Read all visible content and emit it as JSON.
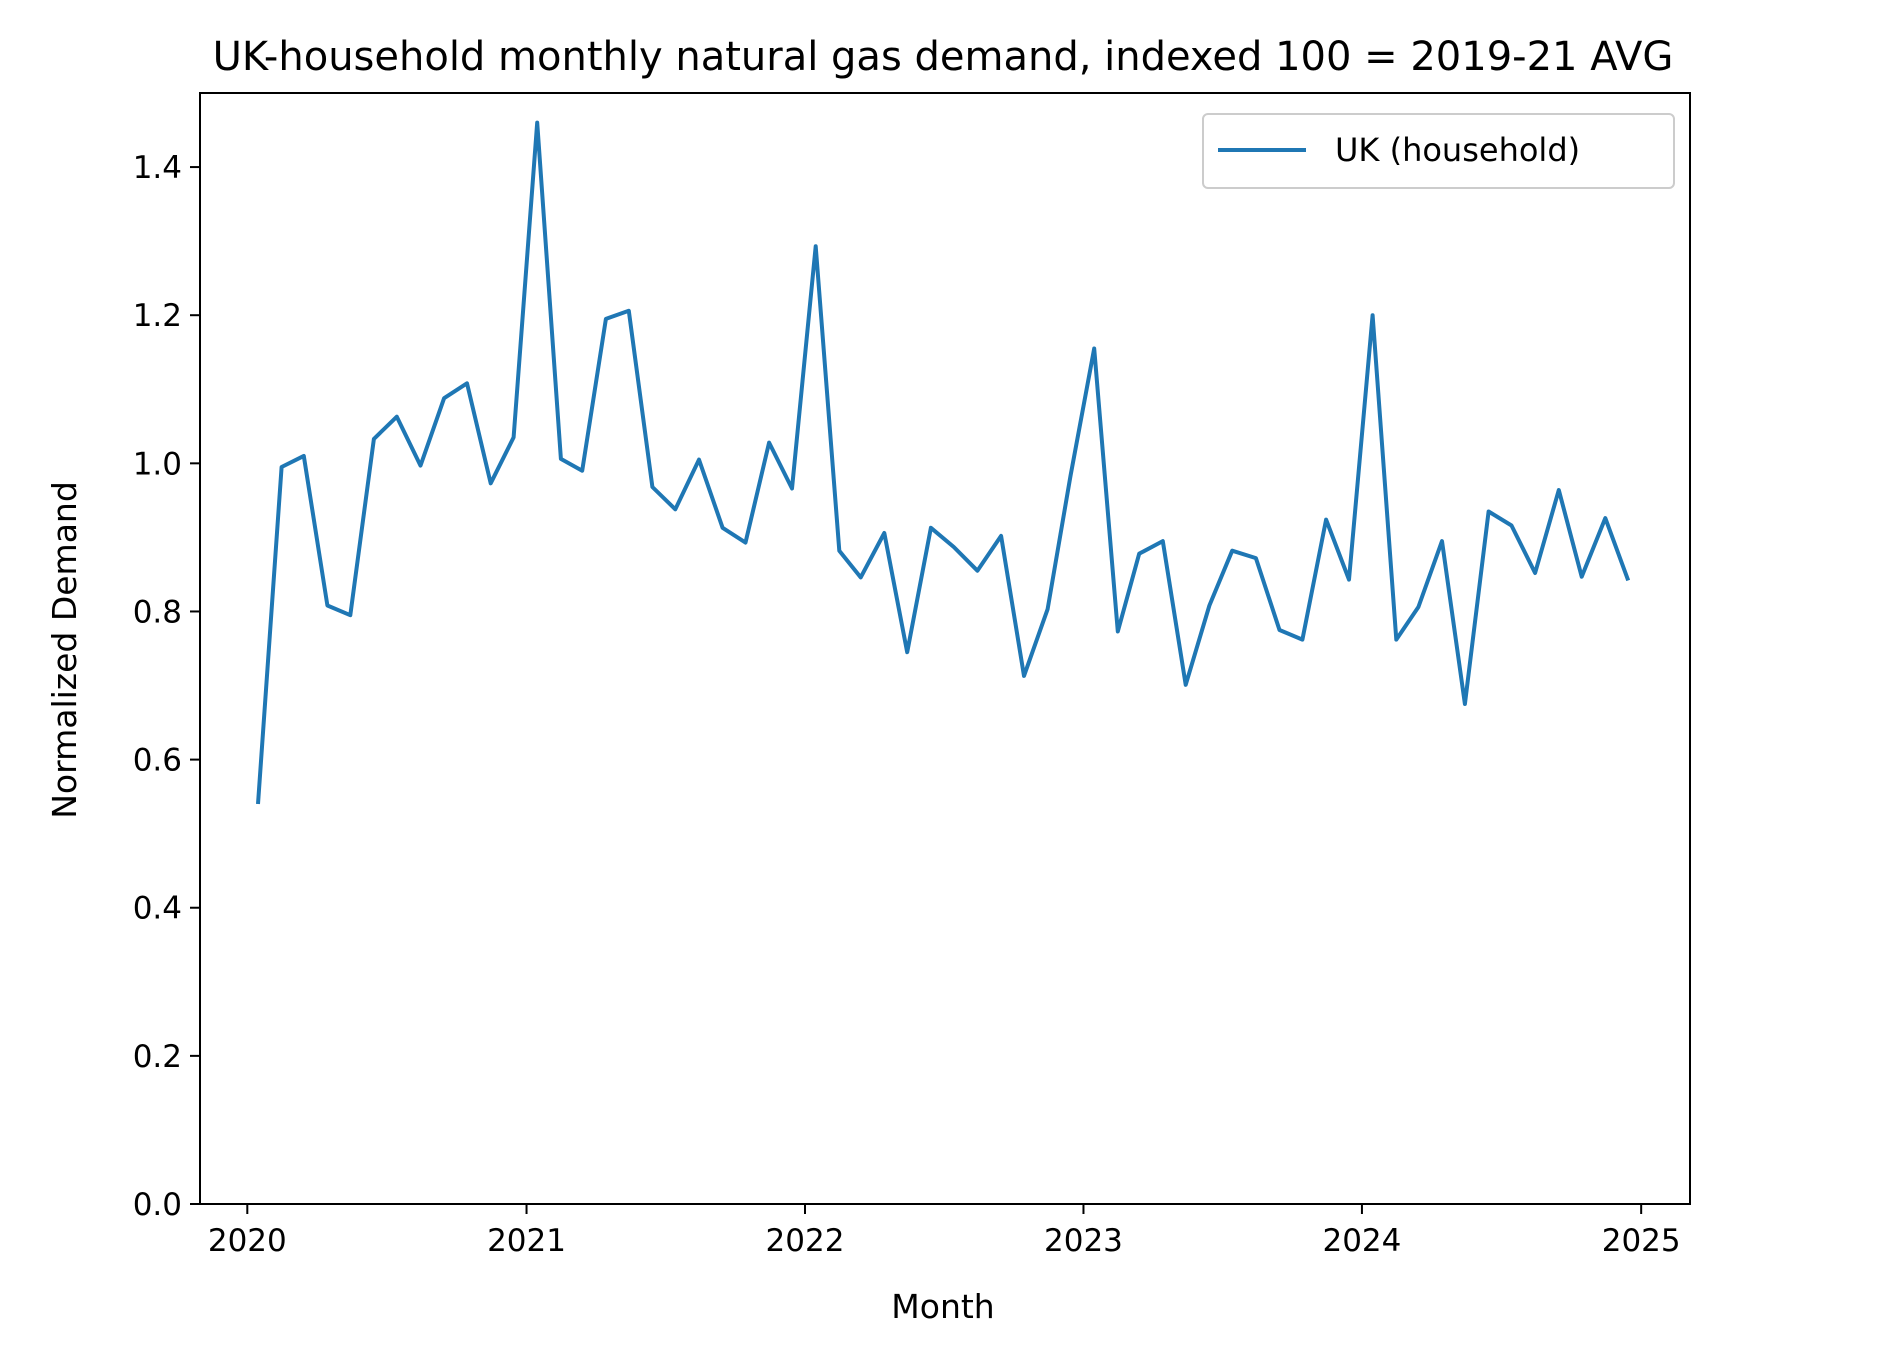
{
  "chart_data": {
    "type": "line",
    "title": "UK-household monthly natural gas demand, indexed 100 = 2019-21 AVG",
    "xlabel": "Month",
    "ylabel": "Normalized Demand",
    "xlim": [
      "2019-10-31",
      "2025-03-06"
    ],
    "ylim": [
      0,
      1.5
    ],
    "x_ticks": [
      "2020",
      "2021",
      "2022",
      "2023",
      "2024",
      "2025"
    ],
    "y_ticks": [
      "0.0",
      "0.2",
      "0.4",
      "0.6",
      "0.8",
      "1.0",
      "1.2",
      "1.4"
    ],
    "grid": false,
    "legend_position": "top-right",
    "series": [
      {
        "name": "UK (household)",
        "color": "#1f77b4",
        "x": [
          "2020-01-15",
          "2020-02-15",
          "2020-03-15",
          "2020-04-15",
          "2020-05-15",
          "2020-06-15",
          "2020-07-15",
          "2020-08-15",
          "2020-09-15",
          "2020-10-15",
          "2020-11-15",
          "2020-12-15",
          "2021-01-15",
          "2021-02-15",
          "2021-03-15",
          "2021-04-15",
          "2021-05-15",
          "2021-06-15",
          "2021-07-15",
          "2021-08-15",
          "2021-09-15",
          "2021-10-15",
          "2021-11-15",
          "2021-12-15",
          "2022-01-15",
          "2022-02-15",
          "2022-03-15",
          "2022-04-15",
          "2022-05-15",
          "2022-06-15",
          "2022-07-15",
          "2022-08-15",
          "2022-09-15",
          "2022-10-15",
          "2022-11-15",
          "2022-12-15",
          "2023-01-15",
          "2023-02-15",
          "2023-03-15",
          "2023-04-15",
          "2023-05-15",
          "2023-06-15",
          "2023-07-15",
          "2023-08-15",
          "2023-09-15",
          "2023-10-15",
          "2023-11-15",
          "2023-12-15",
          "2024-01-15",
          "2024-02-15",
          "2024-03-15",
          "2024-04-15",
          "2024-05-15",
          "2024-06-15",
          "2024-07-15",
          "2024-08-15",
          "2024-09-15",
          "2024-10-15",
          "2024-11-15",
          "2024-12-15"
        ],
        "values": [
          0.54,
          0.995,
          1.01,
          0.808,
          0.795,
          1.033,
          1.063,
          0.997,
          1.088,
          1.108,
          0.973,
          1.035,
          1.46,
          1.006,
          0.99,
          1.195,
          1.206,
          0.968,
          0.938,
          1.005,
          0.913,
          0.893,
          1.028,
          0.966,
          1.293,
          0.882,
          0.846,
          0.906,
          0.745,
          0.913,
          0.887,
          0.855,
          0.902,
          0.713,
          0.803,
          0.983,
          1.155,
          0.773,
          0.878,
          0.895,
          0.701,
          0.808,
          0.882,
          0.872,
          0.775,
          0.762,
          0.924,
          0.843,
          1.2,
          0.762,
          0.806,
          0.895,
          0.675,
          0.935,
          0.916,
          0.852,
          0.964,
          0.847,
          0.926,
          0.842
        ]
      }
    ]
  }
}
